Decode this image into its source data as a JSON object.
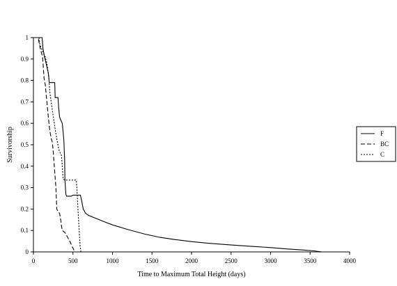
{
  "chart_data": {
    "type": "line",
    "title": "",
    "xlabel": "Time to Maximum Total Height (days)",
    "ylabel": "Survivorship",
    "xlim": [
      0,
      4000
    ],
    "ylim": [
      0,
      1
    ],
    "xticks": [
      0,
      500,
      1000,
      1500,
      2000,
      2500,
      3000,
      3500,
      4000
    ],
    "yticks": [
      0,
      0.1,
      0.2,
      0.3,
      0.4,
      0.5,
      0.6,
      0.7,
      0.8,
      0.9,
      1
    ],
    "grid": false,
    "legend_position": "right",
    "series": [
      {
        "name": "F",
        "line_style": "solid",
        "points": [
          [
            0,
            1
          ],
          [
            110,
            1
          ],
          [
            120,
            0.95
          ],
          [
            140,
            0.91
          ],
          [
            160,
            0.88
          ],
          [
            190,
            0.83
          ],
          [
            200,
            0.79
          ],
          [
            270,
            0.79
          ],
          [
            275,
            0.72
          ],
          [
            310,
            0.72
          ],
          [
            320,
            0.67
          ],
          [
            330,
            0.63
          ],
          [
            340,
            0.62
          ],
          [
            365,
            0.6
          ],
          [
            375,
            0.56
          ],
          [
            385,
            0.52
          ],
          [
            395,
            0.43
          ],
          [
            398,
            0.34
          ],
          [
            410,
            0.27
          ],
          [
            420,
            0.26
          ],
          [
            480,
            0.26
          ],
          [
            500,
            0.265
          ],
          [
            595,
            0.265
          ],
          [
            610,
            0.24
          ],
          [
            630,
            0.2
          ],
          [
            660,
            0.18
          ],
          [
            700,
            0.17
          ],
          [
            800,
            0.155
          ],
          [
            900,
            0.14
          ],
          [
            1000,
            0.126
          ],
          [
            1200,
            0.104
          ],
          [
            1400,
            0.084
          ],
          [
            1600,
            0.068
          ],
          [
            1800,
            0.057
          ],
          [
            2000,
            0.048
          ],
          [
            2200,
            0.041
          ],
          [
            2400,
            0.035
          ],
          [
            2600,
            0.03
          ],
          [
            2800,
            0.025
          ],
          [
            3000,
            0.02
          ],
          [
            3200,
            0.014
          ],
          [
            3400,
            0.009
          ],
          [
            3550,
            0.005
          ],
          [
            3650,
            0
          ]
        ]
      },
      {
        "name": "BC",
        "line_style": "dashed",
        "points": [
          [
            0,
            1
          ],
          [
            60,
            1
          ],
          [
            70,
            0.98
          ],
          [
            80,
            0.96
          ],
          [
            100,
            0.93
          ],
          [
            115,
            0.91
          ],
          [
            125,
            0.86
          ],
          [
            135,
            0.81
          ],
          [
            150,
            0.78
          ],
          [
            165,
            0.72
          ],
          [
            175,
            0.68
          ],
          [
            190,
            0.62
          ],
          [
            200,
            0.59
          ],
          [
            210,
            0.56
          ],
          [
            225,
            0.53
          ],
          [
            240,
            0.51
          ],
          [
            250,
            0.47
          ],
          [
            262,
            0.41
          ],
          [
            272,
            0.36
          ],
          [
            285,
            0.3
          ],
          [
            290,
            0.25
          ],
          [
            295,
            0.2
          ],
          [
            310,
            0.19
          ],
          [
            330,
            0.18
          ],
          [
            345,
            0.15
          ],
          [
            355,
            0.12
          ],
          [
            365,
            0.1
          ],
          [
            400,
            0.09
          ],
          [
            430,
            0.07
          ],
          [
            460,
            0.05
          ],
          [
            490,
            0.025
          ],
          [
            510,
            0.01
          ],
          [
            520,
            0
          ]
        ]
      },
      {
        "name": "C",
        "line_style": "dotted",
        "points": [
          [
            0,
            1
          ],
          [
            70,
            1
          ],
          [
            80,
            0.97
          ],
          [
            100,
            0.95
          ],
          [
            120,
            0.93
          ],
          [
            150,
            0.91
          ],
          [
            170,
            0.88
          ],
          [
            190,
            0.83
          ],
          [
            210,
            0.74
          ],
          [
            235,
            0.67
          ],
          [
            260,
            0.61
          ],
          [
            280,
            0.56
          ],
          [
            300,
            0.52
          ],
          [
            320,
            0.48
          ],
          [
            340,
            0.46
          ],
          [
            355,
            0.45
          ],
          [
            365,
            0.4
          ],
          [
            375,
            0.34
          ],
          [
            400,
            0.335
          ],
          [
            540,
            0.335
          ],
          [
            550,
            0.3
          ],
          [
            560,
            0.22
          ],
          [
            575,
            0.12
          ],
          [
            590,
            0.03
          ],
          [
            600,
            0
          ]
        ]
      }
    ]
  }
}
